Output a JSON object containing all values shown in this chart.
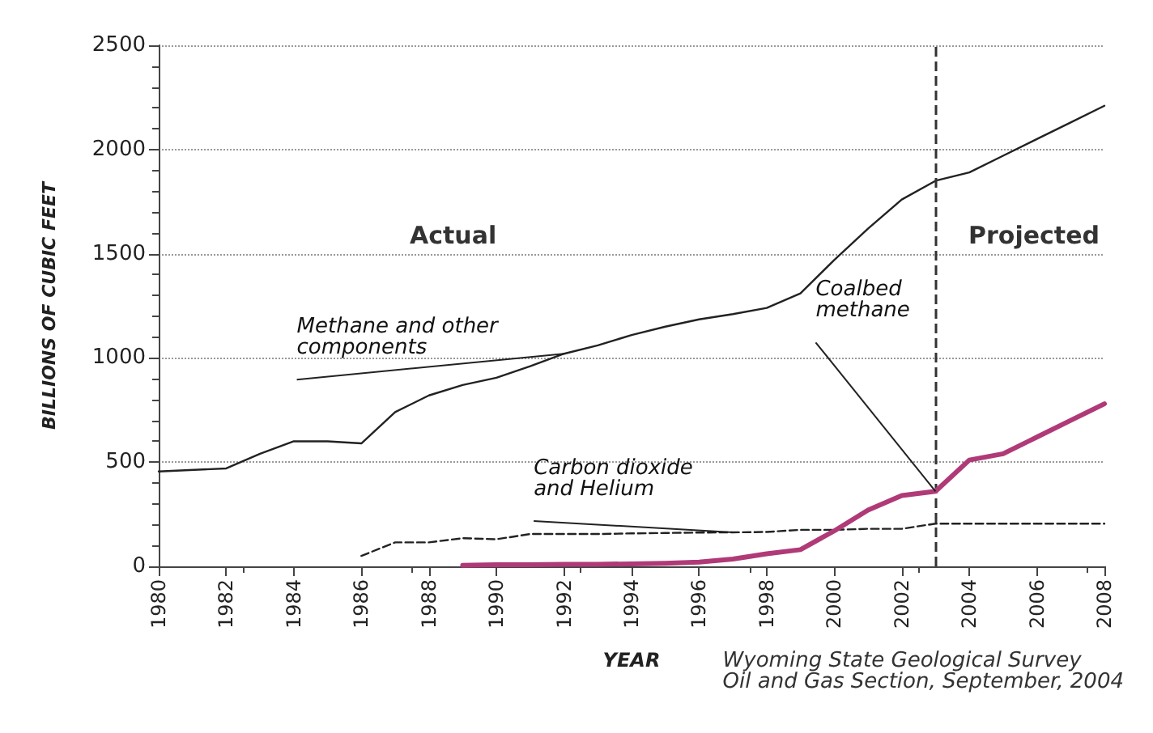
{
  "chart_data": {
    "type": "line",
    "xlabel": "YEAR",
    "ylabel": "BILLIONS OF CUBIC FEET",
    "xlim": [
      1980,
      2008
    ],
    "xticks": [
      1980,
      1982,
      1984,
      1986,
      1988,
      1990,
      1992,
      1994,
      1996,
      1998,
      2000,
      2002,
      2004,
      2006,
      2008
    ],
    "ylim": [
      0,
      2500
    ],
    "yticks": [
      0,
      500,
      1000,
      1500,
      2000,
      2500
    ],
    "grid": "y",
    "legend": false,
    "marker": "none",
    "series": [
      {
        "name": "Methane and other components",
        "color": "#222222",
        "line_style": "solid",
        "x": [
          1980,
          1982,
          1983,
          1984,
          1985,
          1986,
          1987,
          1988,
          1989,
          1990,
          1991,
          1992,
          1993,
          1994,
          1995,
          1996,
          1997,
          1998,
          1999,
          2000,
          2001,
          2002,
          2003,
          2004,
          2005,
          2006,
          2007,
          2008
        ],
        "values": [
          455,
          470,
          540,
          600,
          600,
          590,
          740,
          820,
          870,
          905,
          960,
          1020,
          1060,
          1110,
          1150,
          1185,
          1210,
          1240,
          1310,
          1470,
          1620,
          1760,
          1850,
          1890,
          1970,
          2050,
          2130,
          2210
        ]
      },
      {
        "name": "Carbon dioxide and Helium",
        "color": "#222222",
        "line_style": "dashed",
        "x": [
          1986,
          1987,
          1988,
          1989,
          1990,
          1991,
          1992,
          1993,
          1994,
          1995,
          1996,
          1997,
          1998,
          1999,
          2000,
          2001,
          2002,
          2003,
          2004,
          2005,
          2006,
          2007,
          2008
        ],
        "values": [
          50,
          115,
          115,
          135,
          130,
          155,
          155,
          155,
          158,
          160,
          162,
          163,
          165,
          175,
          175,
          180,
          180,
          205,
          205,
          205,
          205,
          205,
          205
        ]
      },
      {
        "name": "Coalbed methane",
        "color": "#b03a78",
        "line_style": "solid",
        "x": [
          1989,
          1990,
          1991,
          1992,
          1993,
          1994,
          1995,
          1996,
          1997,
          1998,
          1999,
          2000,
          2001,
          2002,
          2003,
          2004,
          2005,
          2006,
          2007,
          2008
        ],
        "values": [
          5,
          8,
          8,
          10,
          10,
          12,
          15,
          20,
          35,
          60,
          80,
          170,
          270,
          340,
          360,
          510,
          540,
          620,
          700,
          780
        ]
      }
    ],
    "ref_lines": [
      {
        "axis": "x",
        "value": 2003,
        "line_style": "dashed",
        "color": "#333333"
      }
    ],
    "annotations": [
      "Actual",
      "Projected",
      "Wyoming State Geological Survey\nOil and Gas Section, September, 2004"
    ]
  }
}
